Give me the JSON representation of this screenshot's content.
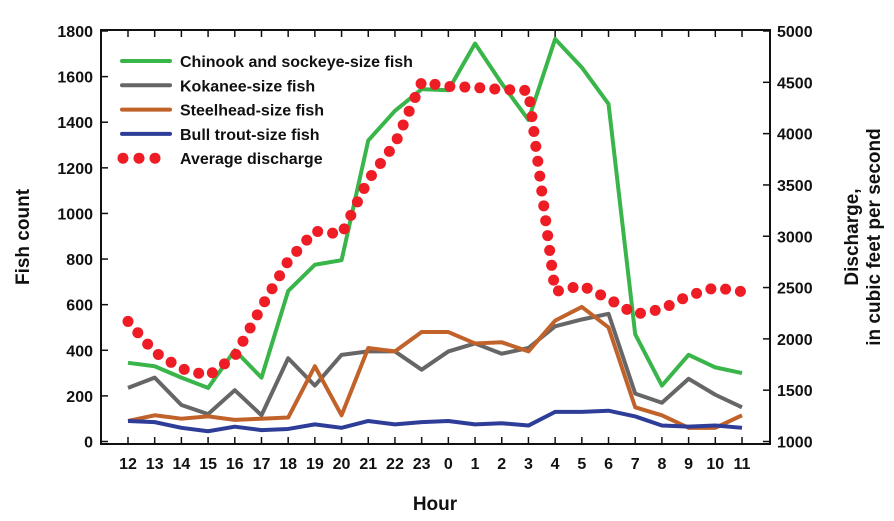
{
  "chart_data": {
    "type": "line",
    "title": "",
    "xlabel": "Hour",
    "ylabel": "Fish count",
    "y2label": [
      "Discharge,",
      "in cubic feet per second"
    ],
    "categories": [
      "12",
      "13",
      "14",
      "15",
      "16",
      "17",
      "18",
      "19",
      "20",
      "21",
      "22",
      "23",
      "0",
      "1",
      "2",
      "3",
      "4",
      "5",
      "6",
      "7",
      "8",
      "9",
      "10",
      "11"
    ],
    "ylim": [
      0,
      1800
    ],
    "yticks": [
      0,
      200,
      400,
      600,
      800,
      1000,
      1200,
      1400,
      1600,
      1800
    ],
    "y2lim": [
      1000,
      5000
    ],
    "y2ticks": [
      1000,
      1500,
      2000,
      2500,
      3000,
      3500,
      4000,
      4500,
      5000
    ],
    "grid": false,
    "legend_position": "top-left",
    "series": [
      {
        "name": "Chinook and sockeye-size fish",
        "color": "#39b54a",
        "axis": "left",
        "style": "solid",
        "values": [
          345,
          330,
          280,
          235,
          400,
          280,
          660,
          775,
          795,
          1320,
          1450,
          1545,
          1540,
          1745,
          1570,
          1410,
          1765,
          1640,
          1480,
          470,
          245,
          380,
          325,
          300
        ]
      },
      {
        "name": "Kokanee-size fish",
        "color": "#666666",
        "axis": "left",
        "style": "solid",
        "values": [
          235,
          280,
          160,
          120,
          225,
          115,
          365,
          245,
          380,
          395,
          395,
          315,
          395,
          430,
          385,
          410,
          505,
          535,
          560,
          210,
          170,
          275,
          205,
          150
        ]
      },
      {
        "name": "Steelhead-size fish",
        "color": "#c0622a",
        "axis": "left",
        "style": "solid",
        "values": [
          90,
          115,
          100,
          110,
          95,
          100,
          105,
          330,
          115,
          410,
          395,
          480,
          480,
          430,
          435,
          395,
          530,
          590,
          500,
          150,
          115,
          60,
          60,
          115
        ]
      },
      {
        "name": "Bull trout-size fish",
        "color": "#2e3d98",
        "axis": "left",
        "style": "solid",
        "values": [
          90,
          85,
          60,
          45,
          65,
          50,
          55,
          75,
          60,
          90,
          75,
          85,
          90,
          75,
          80,
          70,
          130,
          130,
          135,
          110,
          70,
          65,
          70,
          60
        ]
      },
      {
        "name": "Average discharge",
        "color": "#ee1c25",
        "axis": "right",
        "style": "dotted",
        "values": [
          2170,
          1870,
          1710,
          1640,
          1830,
          2310,
          2760,
          3050,
          3020,
          3550,
          3900,
          4500,
          4460,
          4450,
          4430,
          4420,
          2460,
          2520,
          2390,
          2240,
          2290,
          2420,
          2500,
          2460
        ]
      }
    ]
  }
}
